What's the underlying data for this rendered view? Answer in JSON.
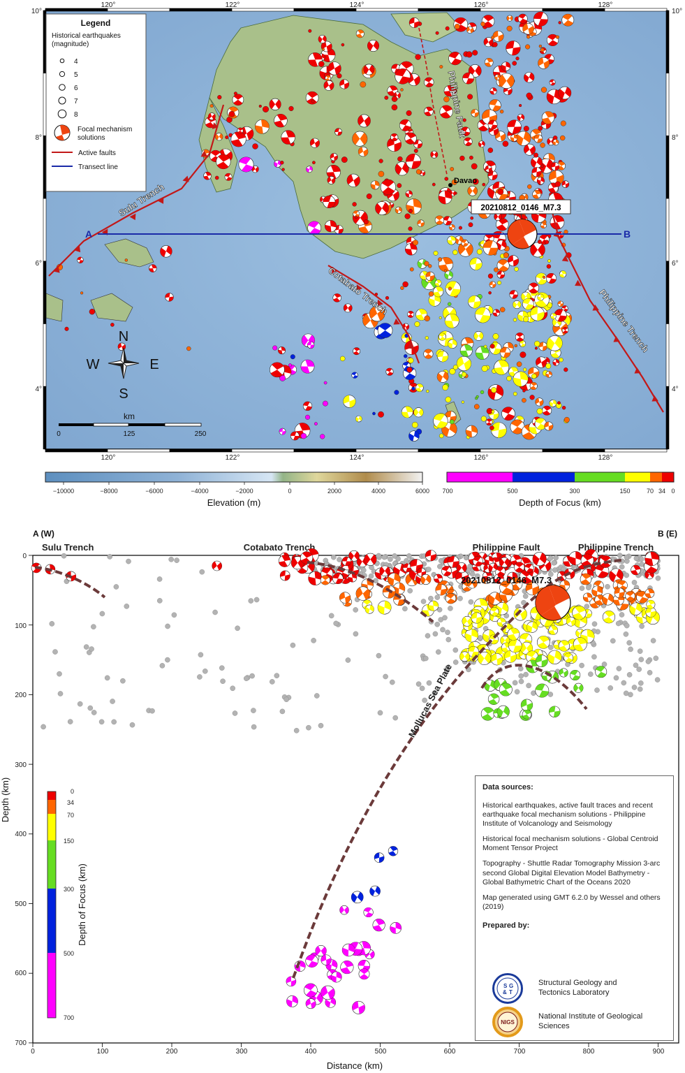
{
  "map": {
    "lon_ticks": [
      "120°",
      "122°",
      "124°",
      "126°",
      "128°"
    ],
    "lat_ticks": [
      "10°",
      "8°",
      "6°",
      "4°"
    ],
    "legend": {
      "title": "Legend",
      "subtitle1": "Historical earthquakes",
      "subtitle2": "(magnitude)",
      "magnitudes": [
        "4",
        "5",
        "6",
        "7",
        "8"
      ],
      "focal_label1": "Focal mechanism",
      "focal_label2": "solutions",
      "faults_label": "Active faults",
      "transect_label": "Transect line"
    },
    "labels": {
      "sulu": "Sulu Trench",
      "cotabato": "Cotabato Trench",
      "phil_trench": "Philippine Trench",
      "phil_fault": "Philippine Fault",
      "davao": "Davao",
      "event": "20210812_0146_M7.3",
      "point_a": "A",
      "point_b": "B"
    },
    "compass": {
      "n": "N",
      "s": "S",
      "e": "E",
      "w": "W"
    },
    "scale": {
      "unit": "km",
      "ticks": [
        "0",
        "125",
        "250"
      ]
    },
    "colors": {
      "sea": "#8fb3d6",
      "land": "#a9c08a",
      "fault": "#c21818",
      "transect": "#1a2aa8"
    }
  },
  "elevation_bar": {
    "label": "Elevation (m)",
    "ticks": [
      "−10000",
      "−8000",
      "−6000",
      "−4000",
      "−2000",
      "0",
      "2000",
      "4000",
      "6000"
    ]
  },
  "depth_bar": {
    "label": "Depth of Focus (km)",
    "ticks": [
      "700",
      "500",
      "300",
      "150",
      "70",
      "34",
      "0"
    ],
    "colors": {
      "magenta": "#ff00ff",
      "blue": "#0022dd",
      "green": "#66dd22",
      "yellow": "#ffff00",
      "orange": "#ff6600",
      "red": "#ee0000"
    }
  },
  "section": {
    "title_left": "A (W)",
    "title_right": "B (E)",
    "labels": {
      "sulu": "Sulu Trench",
      "cotabato": "Cotabato Trench",
      "phil_fault": "Philippine Fault",
      "phil_trench": "Philippine Trench",
      "event": "20210812_0146_M7.3",
      "slab": "Mollucas Sea Plate"
    },
    "xlabel": "Distance (km)",
    "ylabel": "Depth (km)",
    "xticks": [
      "0",
      "100",
      "200",
      "300",
      "400",
      "500",
      "600",
      "700",
      "800",
      "900"
    ],
    "yticks": [
      "0",
      "100",
      "200",
      "300",
      "400",
      "500",
      "600",
      "700"
    ],
    "depth_scale": {
      "label": "Depth of Focus (km)",
      "ticks": [
        "0",
        "34",
        "70",
        "150",
        "300",
        "500",
        "700"
      ]
    }
  },
  "sources": {
    "title": "Data sources:",
    "items": [
      "Historical earthquakes, active fault traces and recent earthquake focal mechanism solutions - Philippine Institute of Volcanology and Seismology",
      "Historical focal mechanism solutions - Global Centroid Moment Tensor Project",
      "Topography - Shuttle Radar Tomography Mission 3-arc second Global Digital Elevation Model Bathymetry - Global Bathymetric Chart of the Oceans 2020",
      "Map generated using GMT 6.2.0 by Wessel and others (2019)"
    ],
    "prepared_title": "Prepared by:",
    "orgs": [
      {
        "seal": "SGT",
        "name": "Structural Geology and Tectonics Laboratory"
      },
      {
        "seal": "NIGS",
        "name": "National Institute of Geological Sciences"
      }
    ]
  }
}
